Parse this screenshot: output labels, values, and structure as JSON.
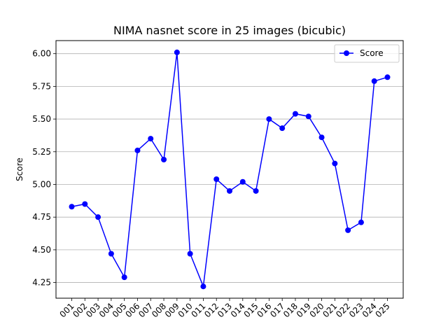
{
  "chart_data": {
    "type": "line",
    "title": "NIMA nasnet score in 25 images (bicubic)",
    "xlabel": "",
    "ylabel": "Score",
    "categories": [
      "001",
      "002",
      "003",
      "004",
      "005",
      "006",
      "007",
      "008",
      "009",
      "010",
      "011",
      "012",
      "013",
      "014",
      "015",
      "016",
      "017",
      "018",
      "019",
      "020",
      "021",
      "022",
      "023",
      "024",
      "025"
    ],
    "series": [
      {
        "name": "Score",
        "color": "#0000ff",
        "marker": "circle",
        "values": [
          4.83,
          4.85,
          4.75,
          4.47,
          4.29,
          5.26,
          5.35,
          5.19,
          6.01,
          4.47,
          4.22,
          5.04,
          4.95,
          5.02,
          4.95,
          5.5,
          5.43,
          5.54,
          5.52,
          5.36,
          5.16,
          4.65,
          4.71,
          5.79,
          5.82
        ]
      }
    ],
    "y_ticks": [
      "4.25",
      "4.50",
      "4.75",
      "5.00",
      "5.25",
      "5.50",
      "5.75",
      "6.00"
    ],
    "ylim": [
      4.13,
      6.1
    ],
    "grid": "y",
    "legend_position": "top-right"
  }
}
